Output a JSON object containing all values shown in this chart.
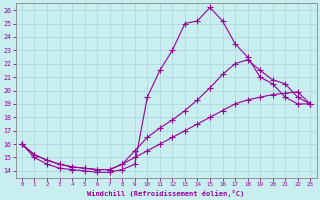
{
  "xlabel": "Windchill (Refroidissement éolien,°C)",
  "bg_color": "#c8eef0",
  "line_color": "#990099",
  "grid_color": "#b0d8dc",
  "xlim": [
    -0.5,
    23.5
  ],
  "ylim": [
    13.5,
    26.5
  ],
  "yticks": [
    14,
    15,
    16,
    17,
    18,
    19,
    20,
    21,
    22,
    23,
    24,
    25,
    26
  ],
  "xticks": [
    0,
    1,
    2,
    3,
    4,
    5,
    6,
    7,
    8,
    9,
    10,
    11,
    12,
    13,
    14,
    15,
    16,
    17,
    18,
    19,
    20,
    21,
    22,
    23
  ],
  "line1_x": [
    0,
    1,
    2,
    3,
    4,
    5,
    6,
    7,
    8,
    9,
    10,
    11,
    12,
    13,
    14,
    15,
    16,
    17,
    18,
    19,
    20,
    21,
    22,
    23
  ],
  "line1_y": [
    16.0,
    15.0,
    14.5,
    14.2,
    14.1,
    14.0,
    13.9,
    13.9,
    14.1,
    14.5,
    19.5,
    21.5,
    23.0,
    25.0,
    25.2,
    26.2,
    25.2,
    23.5,
    22.5,
    21.0,
    20.5,
    19.5,
    19.0,
    19.0
  ],
  "line2_x": [
    0,
    1,
    2,
    3,
    4,
    5,
    6,
    7,
    8,
    9,
    10,
    11,
    12,
    13,
    14,
    15,
    16,
    17,
    18,
    19,
    20,
    21,
    22,
    23
  ],
  "line2_y": [
    16.0,
    15.2,
    14.8,
    14.5,
    14.3,
    14.2,
    14.1,
    14.1,
    14.5,
    15.5,
    16.5,
    17.2,
    17.8,
    18.5,
    19.3,
    20.2,
    21.2,
    22.0,
    22.3,
    21.5,
    20.8,
    20.5,
    19.5,
    19.0
  ],
  "line3_x": [
    0,
    1,
    2,
    3,
    4,
    5,
    6,
    7,
    8,
    9,
    10,
    11,
    12,
    13,
    14,
    15,
    16,
    17,
    18,
    19,
    20,
    21,
    22,
    23
  ],
  "line3_y": [
    16.0,
    15.2,
    14.8,
    14.5,
    14.3,
    14.2,
    14.1,
    14.1,
    14.5,
    15.0,
    15.5,
    16.0,
    16.5,
    17.0,
    17.5,
    18.0,
    18.5,
    19.0,
    19.3,
    19.5,
    19.7,
    19.8,
    19.9,
    19.0
  ]
}
